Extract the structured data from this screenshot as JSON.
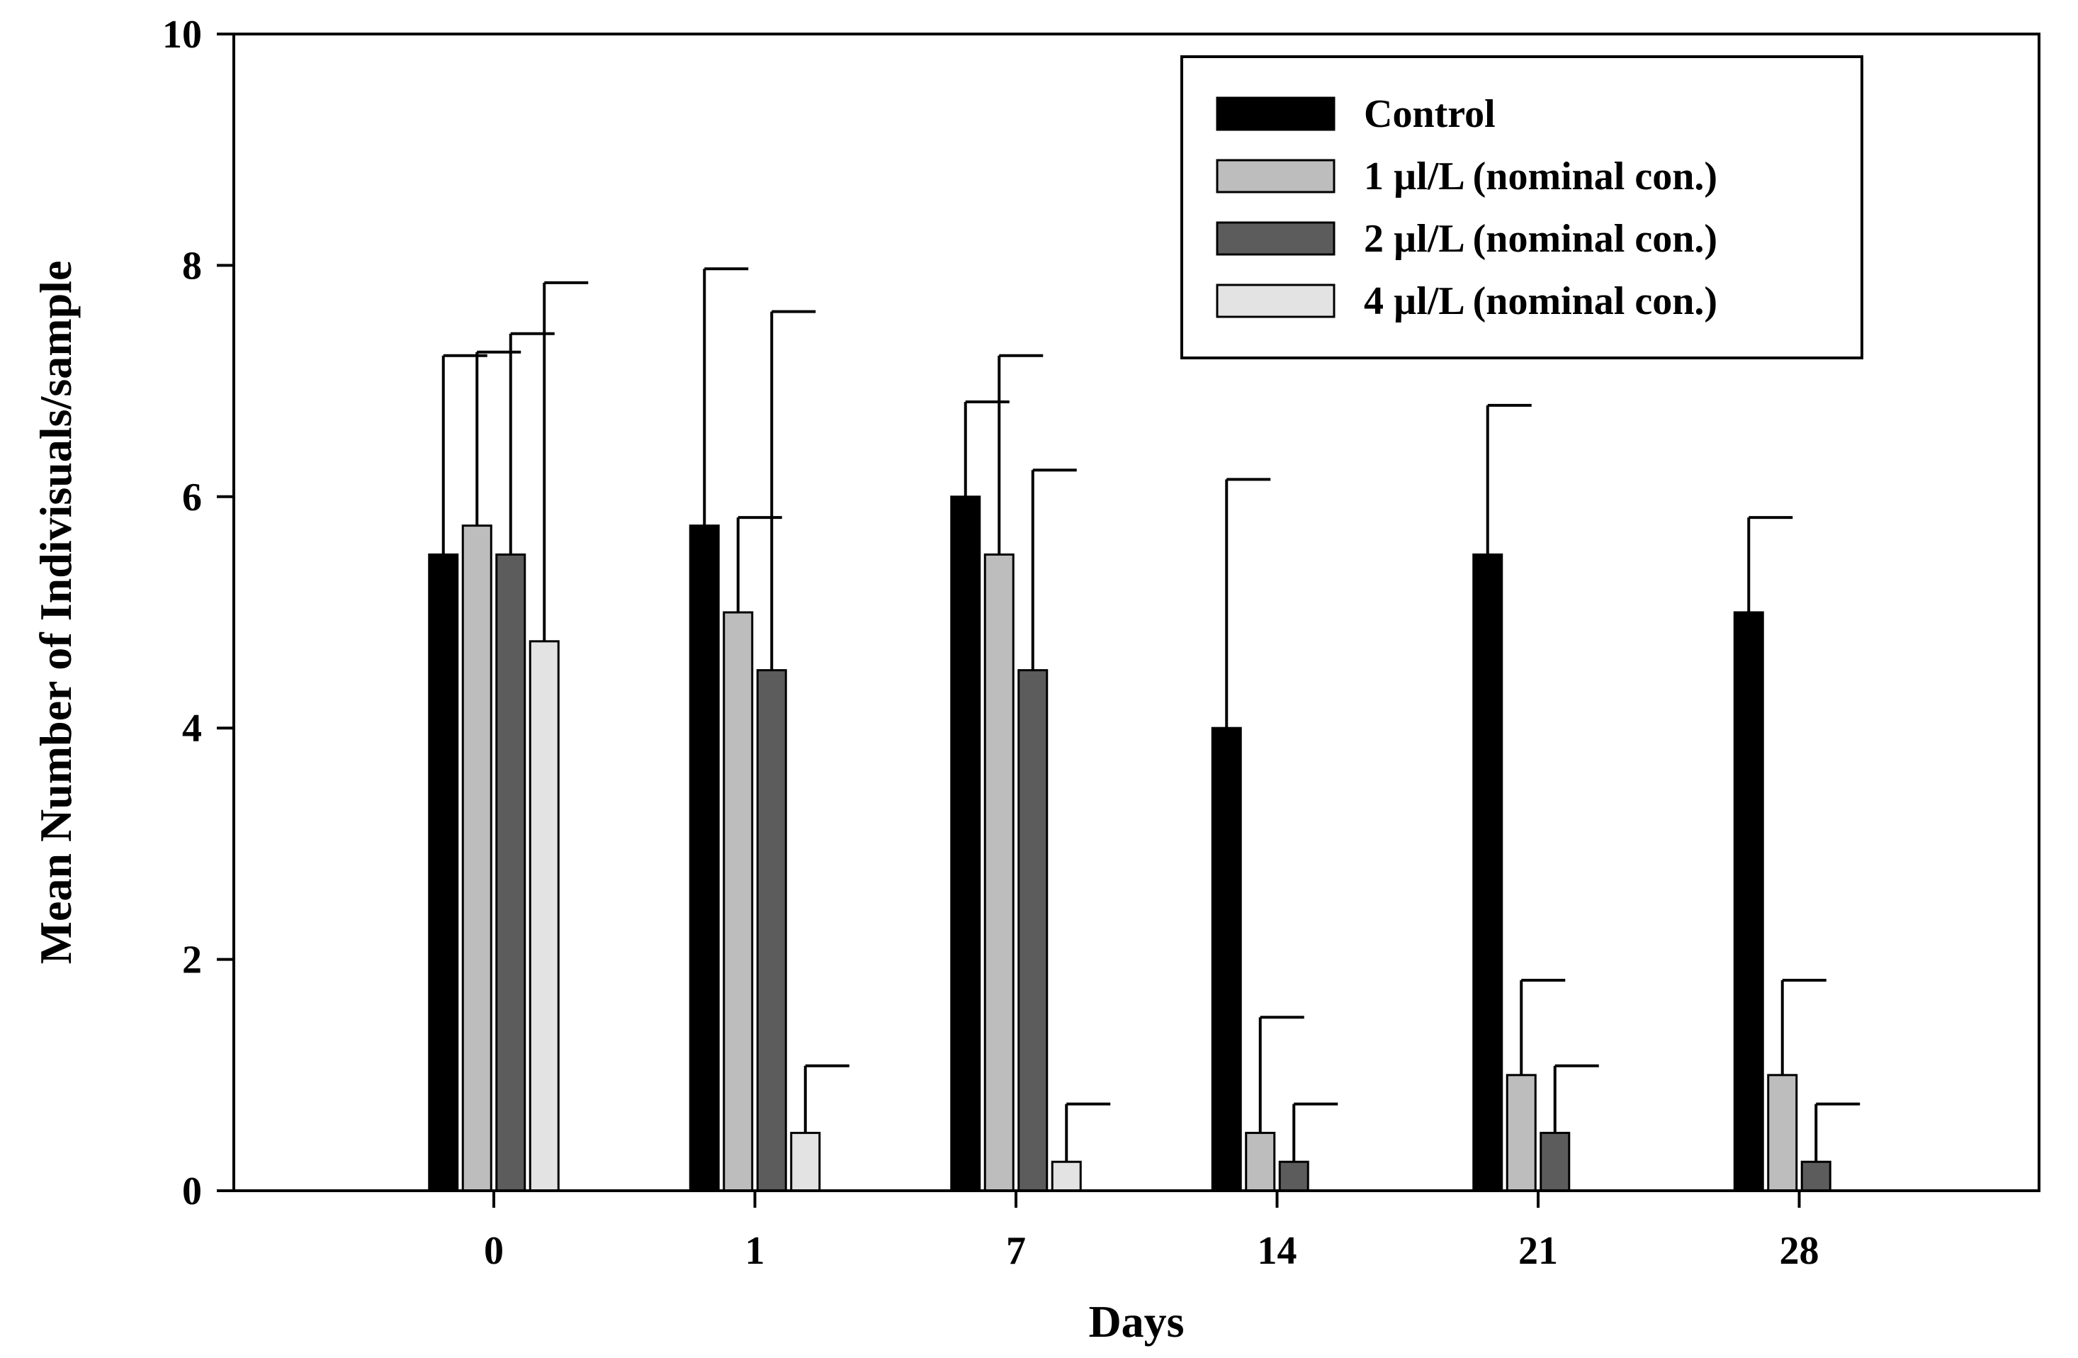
{
  "chart_data": {
    "type": "bar",
    "title": "",
    "xlabel": "Days",
    "ylabel": "Mean Number of Indivisuals/sample",
    "categories": [
      "0",
      "1",
      "7",
      "14",
      "21",
      "28"
    ],
    "ylim": [
      0,
      10
    ],
    "yticks": [
      "0",
      "2",
      "4",
      "6",
      "8",
      "10"
    ],
    "grid": false,
    "legend_position": "top-right",
    "error_bars": "upper",
    "series": [
      {
        "name": "Control",
        "color": "#000000",
        "values": [
          5.5,
          5.75,
          6.0,
          4.0,
          5.5,
          5.0
        ],
        "errors": [
          1.72,
          2.22,
          0.82,
          2.15,
          1.29,
          0.82
        ]
      },
      {
        "name": "1 µl/L (nominal con.)",
        "color": "#bdbdbd",
        "values": [
          5.75,
          5.0,
          5.5,
          0.5,
          1.0,
          1.0
        ],
        "errors": [
          1.5,
          0.82,
          1.72,
          1.0,
          0.82,
          0.82
        ]
      },
      {
        "name": "2 µl/L (nominal con.)",
        "color": "#5c5c5c",
        "values": [
          5.5,
          4.5,
          4.5,
          0.25,
          0.5,
          0.25
        ],
        "errors": [
          1.91,
          3.1,
          1.73,
          0.5,
          0.58,
          0.5
        ]
      },
      {
        "name": "4 µl/L (nominal con.)",
        "color": "#e3e3e3",
        "values": [
          4.75,
          0.5,
          0.25,
          0,
          0,
          0
        ],
        "errors": [
          3.1,
          0.58,
          0.5,
          0,
          0,
          0
        ]
      }
    ]
  }
}
